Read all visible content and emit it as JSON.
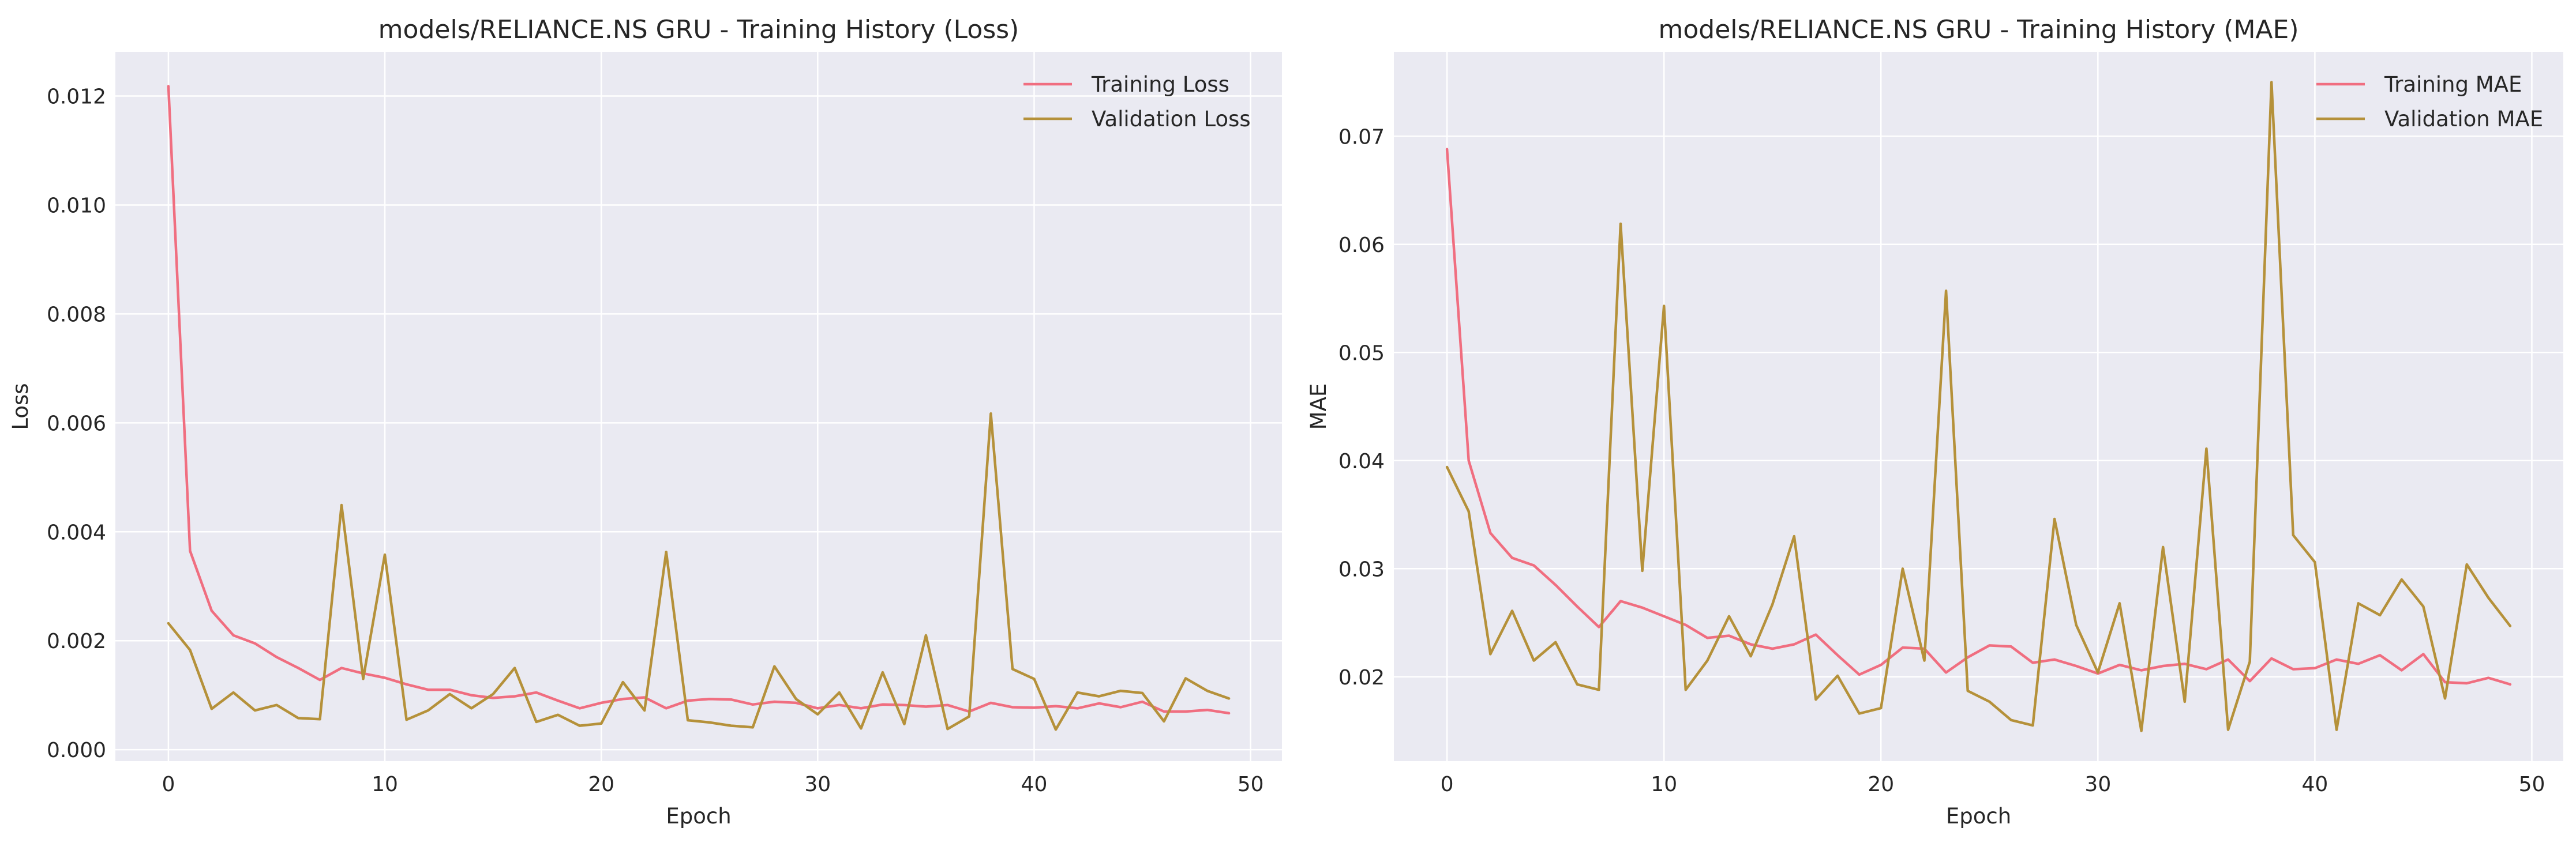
{
  "chart_data": [
    {
      "type": "line",
      "title": "models/RELIANCE.NS GRU - Training History (Loss)",
      "xlabel": "Epoch",
      "ylabel": "Loss",
      "xlim": [
        -2.45,
        51.45
      ],
      "ylim": [
        -0.00021,
        0.01281
      ],
      "xticks": [
        0,
        10,
        20,
        30,
        40,
        50
      ],
      "xtick_labels": [
        "0",
        "10",
        "20",
        "30",
        "40",
        "50"
      ],
      "yticks": [
        0,
        0.002,
        0.004,
        0.006,
        0.008,
        0.01,
        0.012
      ],
      "ytick_labels": [
        "0.000",
        "0.002",
        "0.004",
        "0.006",
        "0.008",
        "0.010",
        "0.012"
      ],
      "grid": true,
      "legend": "top-right",
      "x": [
        0,
        1,
        2,
        3,
        4,
        5,
        6,
        7,
        8,
        9,
        10,
        11,
        12,
        13,
        14,
        15,
        16,
        17,
        18,
        19,
        20,
        21,
        22,
        23,
        24,
        25,
        26,
        27,
        28,
        29,
        30,
        31,
        32,
        33,
        34,
        35,
        36,
        37,
        38,
        39,
        40,
        41,
        42,
        43,
        44,
        45,
        46,
        47,
        48,
        49
      ],
      "series": [
        {
          "name": "Training Loss",
          "color": "#f06e80",
          "values": [
            0.01218,
            0.00365,
            0.00255,
            0.0021,
            0.00195,
            0.0017,
            0.0015,
            0.00128,
            0.0015,
            0.0014,
            0.00132,
            0.0012,
            0.0011,
            0.0011,
            0.001,
            0.00095,
            0.00098,
            0.00105,
            0.0009,
            0.00076,
            0.00086,
            0.00093,
            0.00096,
            0.00076,
            0.0009,
            0.00093,
            0.00092,
            0.00083,
            0.00088,
            0.00086,
            0.00076,
            0.00082,
            0.00076,
            0.00083,
            0.00082,
            0.00079,
            0.00082,
            0.0007,
            0.00086,
            0.00078,
            0.00077,
            0.0008,
            0.00076,
            0.00085,
            0.00078,
            0.00088,
            0.0007,
            0.0007,
            0.00073,
            0.00067
          ]
        },
        {
          "name": "Validation Loss",
          "color": "#b5913a",
          "values": [
            0.00232,
            0.00183,
            0.00075,
            0.00105,
            0.00072,
            0.00082,
            0.00058,
            0.00056,
            0.00449,
            0.0013,
            0.00358,
            0.00055,
            0.00072,
            0.00102,
            0.00076,
            0.00102,
            0.0015,
            0.00051,
            0.00064,
            0.00044,
            0.00048,
            0.00124,
            0.00072,
            0.00363,
            0.00054,
            0.0005,
            0.00044,
            0.00041,
            0.00153,
            0.00093,
            0.00065,
            0.00105,
            0.00039,
            0.00142,
            0.00047,
            0.0021,
            0.00038,
            0.00061,
            0.00617,
            0.00148,
            0.0013,
            0.00037,
            0.00105,
            0.00098,
            0.00108,
            0.00104,
            0.00052,
            0.00131,
            0.00108,
            0.00094
          ]
        }
      ]
    },
    {
      "type": "line",
      "title": "models/RELIANCE.NS GRU - Training History (MAE)",
      "xlabel": "Epoch",
      "ylabel": "MAE",
      "xlim": [
        -2.45,
        51.45
      ],
      "ylim": [
        0.0122,
        0.0778
      ],
      "xticks": [
        0,
        10,
        20,
        30,
        40,
        50
      ],
      "xtick_labels": [
        "0",
        "10",
        "20",
        "30",
        "40",
        "50"
      ],
      "yticks": [
        0.02,
        0.03,
        0.04,
        0.05,
        0.06,
        0.07
      ],
      "ytick_labels": [
        "0.02",
        "0.03",
        "0.04",
        "0.05",
        "0.06",
        "0.07"
      ],
      "grid": true,
      "legend": "top-right",
      "x": [
        0,
        1,
        2,
        3,
        4,
        5,
        6,
        7,
        8,
        9,
        10,
        11,
        12,
        13,
        14,
        15,
        16,
        17,
        18,
        19,
        20,
        21,
        22,
        23,
        24,
        25,
        26,
        27,
        28,
        29,
        30,
        31,
        32,
        33,
        34,
        35,
        36,
        37,
        38,
        39,
        40,
        41,
        42,
        43,
        44,
        45,
        46,
        47,
        48,
        49
      ],
      "series": [
        {
          "name": "Training MAE",
          "color": "#f06e80",
          "values": [
            0.0688,
            0.04,
            0.0333,
            0.031,
            0.0303,
            0.0285,
            0.0265,
            0.0246,
            0.027,
            0.0264,
            0.0256,
            0.0248,
            0.0236,
            0.0238,
            0.023,
            0.0226,
            0.023,
            0.0239,
            0.022,
            0.0202,
            0.0211,
            0.0227,
            0.0226,
            0.0204,
            0.0218,
            0.0229,
            0.0228,
            0.0213,
            0.0216,
            0.021,
            0.0203,
            0.0211,
            0.0206,
            0.021,
            0.0212,
            0.0207,
            0.0216,
            0.0196,
            0.0217,
            0.0207,
            0.0208,
            0.0216,
            0.0212,
            0.022,
            0.0206,
            0.0221,
            0.0195,
            0.0194,
            0.0199,
            0.0193
          ]
        },
        {
          "name": "Validation MAE",
          "color": "#b5913a",
          "values": [
            0.0394,
            0.0353,
            0.0221,
            0.0261,
            0.0215,
            0.0232,
            0.0193,
            0.0188,
            0.0619,
            0.0298,
            0.0543,
            0.0188,
            0.0215,
            0.0256,
            0.0219,
            0.0267,
            0.033,
            0.0179,
            0.0201,
            0.0166,
            0.0171,
            0.03,
            0.0215,
            0.0557,
            0.0187,
            0.0177,
            0.016,
            0.0155,
            0.0346,
            0.0248,
            0.0204,
            0.0268,
            0.015,
            0.032,
            0.0177,
            0.0411,
            0.0151,
            0.0214,
            0.075,
            0.0331,
            0.0306,
            0.0151,
            0.0268,
            0.0257,
            0.029,
            0.0265,
            0.018,
            0.0304,
            0.0273,
            0.0247
          ]
        }
      ]
    }
  ]
}
